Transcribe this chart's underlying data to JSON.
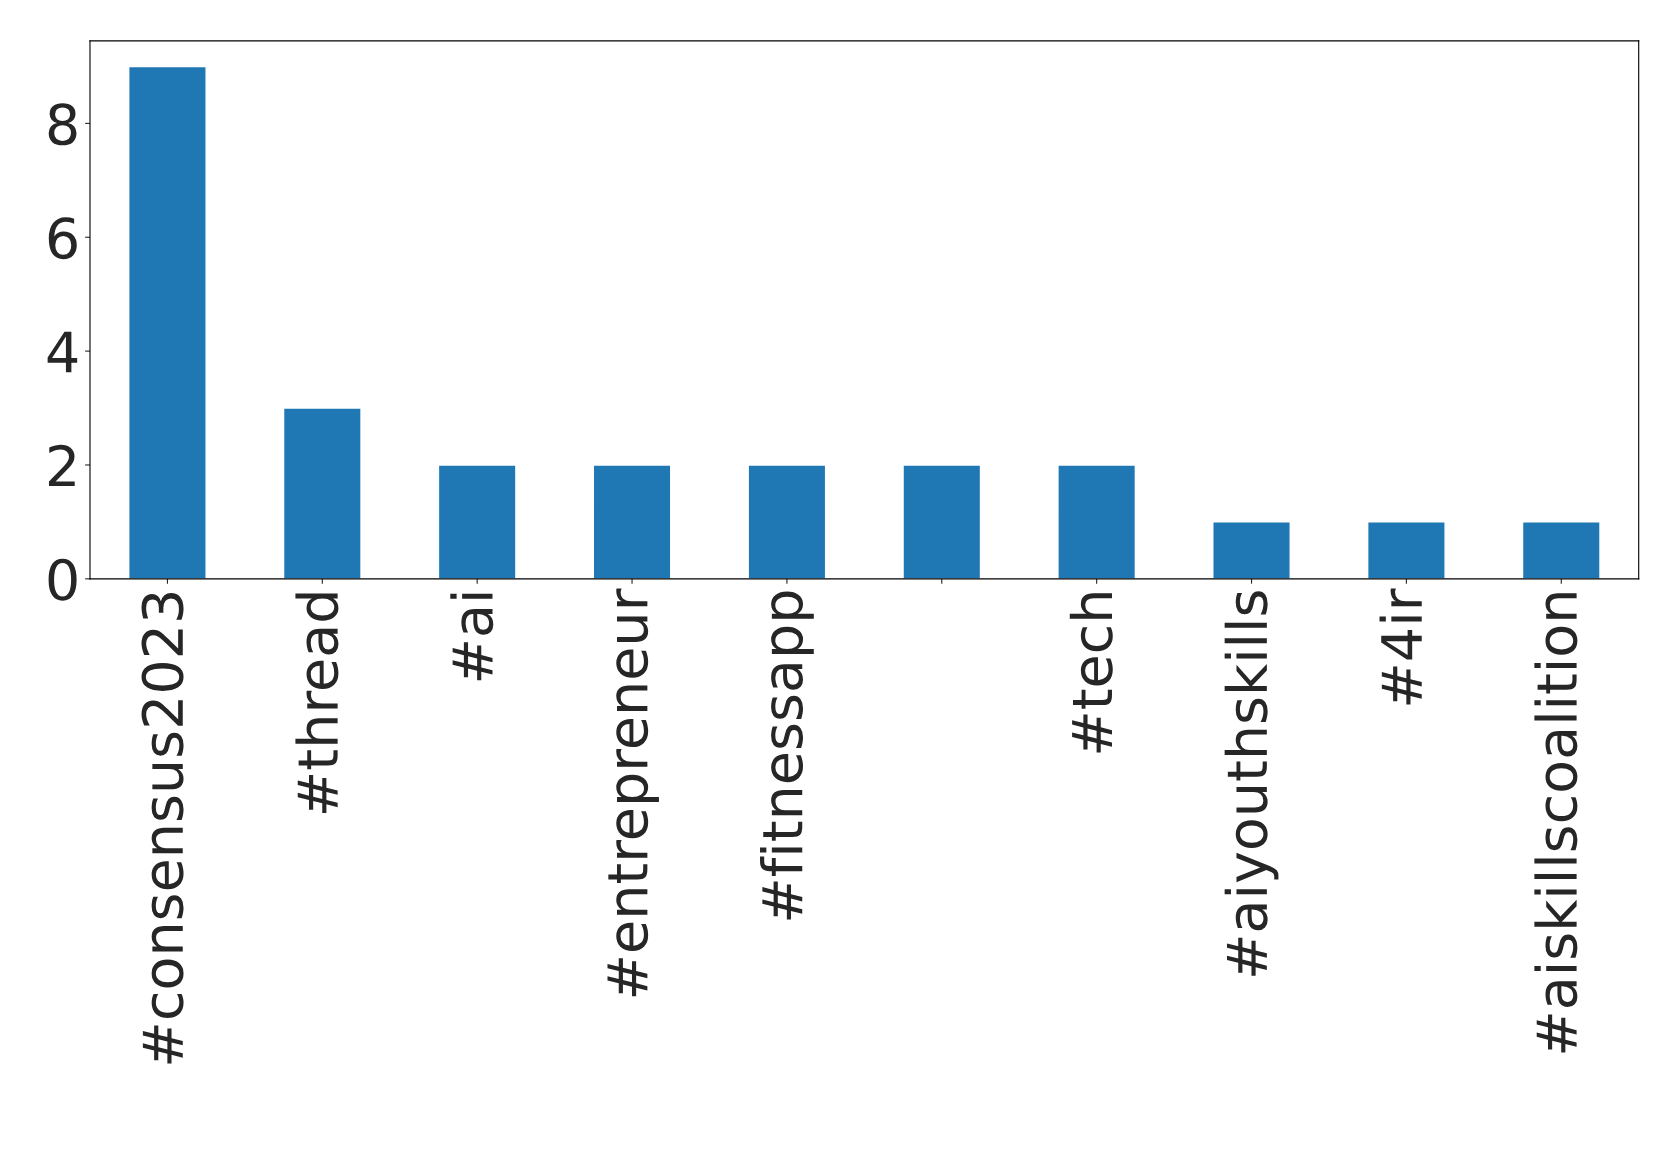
{
  "chart_data": {
    "type": "bar",
    "categories": [
      "#consensus2023",
      "#thread",
      "#ai",
      "#entrepreneur",
      "#fitnessapp",
      null,
      "#tech",
      "#aiyouthskills",
      "#4ir",
      "#aiskillscoalition"
    ],
    "values": [
      9,
      3,
      2,
      2,
      2,
      2,
      2,
      1,
      1,
      1
    ],
    "color": "#1f77b4",
    "ylim": [
      0,
      9.45
    ],
    "yticks": [
      0,
      2,
      4,
      6,
      8
    ],
    "grid": false,
    "legend": false
  }
}
